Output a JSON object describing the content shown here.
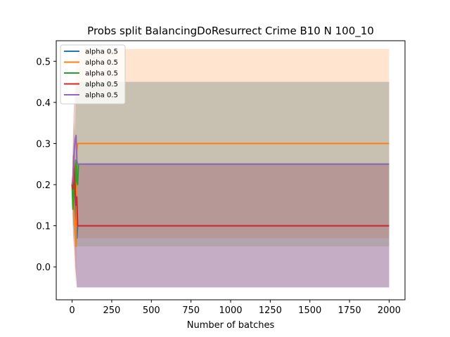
{
  "chart_data": {
    "type": "line",
    "title": "Probs split BalancingDoResurrect Crime B10 N 100_10",
    "xlabel": "Number of batches",
    "ylabel": "",
    "xlim": [
      -100,
      2100
    ],
    "ylim": [
      -0.08,
      0.55
    ],
    "xticks": [
      0,
      250,
      500,
      750,
      1000,
      1250,
      1500,
      1750,
      2000
    ],
    "yticks": [
      0.0,
      0.1,
      0.2,
      0.3,
      0.4,
      0.5
    ],
    "xtick_labels": [
      "0",
      "250",
      "500",
      "750",
      "1000",
      "1250",
      "1500",
      "1750",
      "2000"
    ],
    "ytick_labels": [
      "0.0",
      "0.1",
      "0.2",
      "0.3",
      "0.4",
      "0.5"
    ],
    "grid": false,
    "legend_position": "top-left",
    "series": [
      {
        "name": "alpha 0.5",
        "color": "#1f77b4",
        "x": [
          0,
          5,
          10,
          15,
          20,
          25,
          30,
          35,
          40,
          2000
        ],
        "y": [
          0.2,
          0.18,
          0.21,
          0.19,
          0.15,
          0.09,
          0.07,
          0.1,
          0.1,
          0.1
        ],
        "band_lower": [
          0.2,
          0.12,
          0.1,
          0.06,
          0.0,
          -0.02,
          -0.05,
          -0.05,
          -0.05,
          -0.05
        ],
        "band_upper": [
          0.2,
          0.25,
          0.3,
          0.28,
          0.25,
          0.25,
          0.25,
          0.25,
          0.25,
          0.25
        ]
      },
      {
        "name": "alpha 0.5",
        "color": "#ff7f0e",
        "x": [
          0,
          5,
          10,
          15,
          20,
          25,
          30,
          35,
          40,
          2000
        ],
        "y": [
          0.2,
          0.22,
          0.18,
          0.12,
          0.1,
          0.05,
          0.28,
          0.3,
          0.3,
          0.3
        ],
        "band_lower": [
          0.2,
          0.12,
          0.05,
          0.0,
          -0.02,
          -0.05,
          0.07,
          0.07,
          0.07,
          0.07
        ],
        "band_upper": [
          0.2,
          0.32,
          0.38,
          0.4,
          0.45,
          0.5,
          0.53,
          0.53,
          0.53,
          0.53
        ]
      },
      {
        "name": "alpha 0.5",
        "color": "#2ca02c",
        "x": [
          0,
          5,
          10,
          15,
          20,
          25,
          30,
          35,
          40,
          2000
        ],
        "y": [
          0.2,
          0.14,
          0.17,
          0.22,
          0.19,
          0.26,
          0.21,
          0.2,
          0.25,
          0.25
        ],
        "band_lower": [
          0.2,
          0.08,
          0.06,
          0.1,
          0.06,
          0.1,
          0.05,
          0.05,
          0.05,
          0.05
        ],
        "band_upper": [
          0.2,
          0.26,
          0.3,
          0.35,
          0.33,
          0.42,
          0.45,
          0.45,
          0.45,
          0.45
        ]
      },
      {
        "name": "alpha 0.5",
        "color": "#d62728",
        "x": [
          0,
          5,
          10,
          15,
          20,
          25,
          30,
          35,
          40,
          2000
        ],
        "y": [
          0.2,
          0.19,
          0.27,
          0.22,
          0.18,
          0.15,
          0.17,
          0.1,
          0.1,
          0.1
        ],
        "band_lower": [
          0.2,
          0.1,
          0.1,
          0.05,
          0.02,
          -0.02,
          -0.05,
          -0.05,
          -0.05,
          -0.05
        ],
        "band_upper": [
          0.2,
          0.28,
          0.35,
          0.3,
          0.28,
          0.25,
          0.25,
          0.25,
          0.25,
          0.25
        ]
      },
      {
        "name": "alpha 0.5",
        "color": "#9467bd",
        "x": [
          0,
          5,
          10,
          15,
          20,
          25,
          30,
          35,
          40,
          2000
        ],
        "y": [
          0.2,
          0.21,
          0.26,
          0.29,
          0.31,
          0.32,
          0.26,
          0.25,
          0.25,
          0.25
        ],
        "band_lower": [
          0.2,
          0.1,
          0.05,
          0.05,
          0.0,
          -0.02,
          -0.05,
          -0.05,
          -0.05,
          -0.05
        ],
        "band_upper": [
          0.2,
          0.3,
          0.38,
          0.42,
          0.45,
          0.45,
          0.45,
          0.45,
          0.45,
          0.45
        ]
      }
    ]
  }
}
